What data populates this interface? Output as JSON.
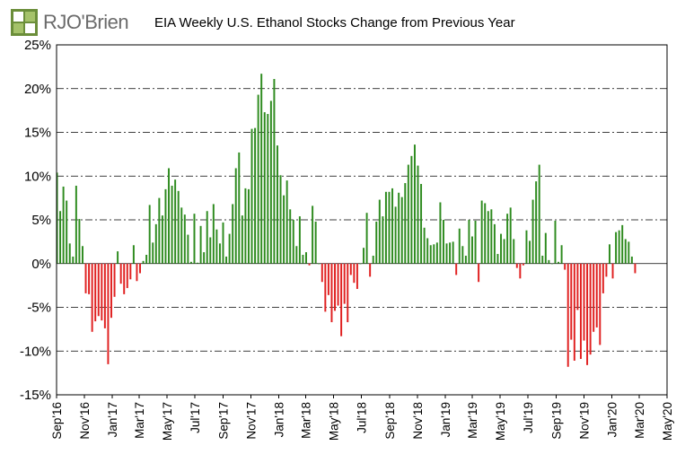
{
  "header": {
    "logo_text": "RJO'Brien",
    "title": "EIA Weekly U.S. Ethanol Stocks Change from Previous Year"
  },
  "colors": {
    "positive": "#2e8b1f",
    "negative": "#e02020",
    "grid": "#000000"
  },
  "chart_data": {
    "type": "bar",
    "title": "EIA Weekly U.S. Ethanol Stocks Change from Previous Year",
    "xlabel": "",
    "ylabel": "",
    "ylim": [
      -15,
      25
    ],
    "yticks": [
      "-15%",
      "-10%",
      "-5%",
      "0%",
      "5%",
      "10%",
      "15%",
      "20%",
      "25%"
    ],
    "grid": "horizontal dash-dot",
    "x_tick_labels": [
      "Sep'16",
      "Nov'16",
      "Jan'17",
      "Mar'17",
      "May'17",
      "Jul'17",
      "Sep'17",
      "Nov'17",
      "Jan'18",
      "Mar'18",
      "May'18",
      "Jul'18",
      "Sep'18",
      "Nov'18",
      "Jan'19",
      "Mar'19",
      "May'19",
      "Jul'19",
      "Sep'19",
      "Nov'19",
      "Jan'20",
      "Mar'20",
      "May'20"
    ],
    "start_week": "2016-09-02",
    "values": [
      10.4,
      6.0,
      8.8,
      7.2,
      2.3,
      0.8,
      8.9,
      5.1,
      2.0,
      -3.4,
      -3.5,
      -7.8,
      -6.6,
      -6.0,
      -6.5,
      -7.4,
      -11.5,
      -6.2,
      -3.8,
      1.4,
      -2.3,
      -3.5,
      -2.8,
      -1.8,
      2.1,
      -2.0,
      -1.1,
      0.3,
      1.0,
      6.7,
      2.4,
      4.5,
      7.5,
      5.5,
      8.5,
      10.9,
      8.9,
      9.6,
      8.3,
      6.4,
      5.6,
      3.3,
      0.2,
      5.7,
      0.1,
      4.3,
      1.3,
      6.0,
      3.0,
      6.8,
      3.9,
      2.3,
      4.7,
      0.8,
      3.4,
      6.8,
      10.9,
      12.7,
      5.5,
      8.6,
      8.5,
      15.4,
      15.5,
      19.3,
      21.7,
      17.3,
      17.1,
      18.6,
      21.1,
      13.5,
      10.1,
      7.8,
      9.5,
      6.2,
      5.0,
      2.0,
      5.4,
      1.0,
      1.3,
      -0.2,
      6.6,
      4.8,
      0.0,
      -2.1,
      -5.5,
      -3.6,
      -6.7,
      -5.4,
      -4.8,
      -8.3,
      -4.6,
      -6.7,
      -1.3,
      -2.2,
      -2.9,
      0.0,
      1.8,
      5.8,
      -1.5,
      0.9,
      4.8,
      7.3,
      5.4,
      8.2,
      8.2,
      8.6,
      6.5,
      8.1,
      7.6,
      9.2,
      11.3,
      12.3,
      13.6,
      11.2,
      9.1,
      4.1,
      2.9,
      2.1,
      2.2,
      2.4,
      7.0,
      5.0,
      2.3,
      2.4,
      2.5,
      -1.3,
      4.0,
      2.0,
      0.9,
      5.0,
      3.1,
      4.9,
      -2.1,
      7.2,
      6.9,
      6.0,
      6.2,
      4.5,
      1.1,
      3.4,
      2.8,
      5.7,
      6.4,
      2.8,
      -0.5,
      -1.7,
      -0.2,
      3.8,
      2.6,
      7.3,
      9.4,
      11.3,
      0.9,
      3.5,
      0.4,
      0.0,
      4.9,
      0.2,
      2.1,
      -0.7,
      -11.8,
      -8.7,
      -11.1,
      -5.3,
      -10.9,
      -8.8,
      -11.6,
      -10.4,
      -7.8,
      -7.3,
      -9.3,
      -3.4,
      -1.5,
      2.2,
      -1.7,
      3.6,
      3.8,
      4.4,
      2.8,
      2.5,
      0.8,
      -1.1
    ]
  }
}
